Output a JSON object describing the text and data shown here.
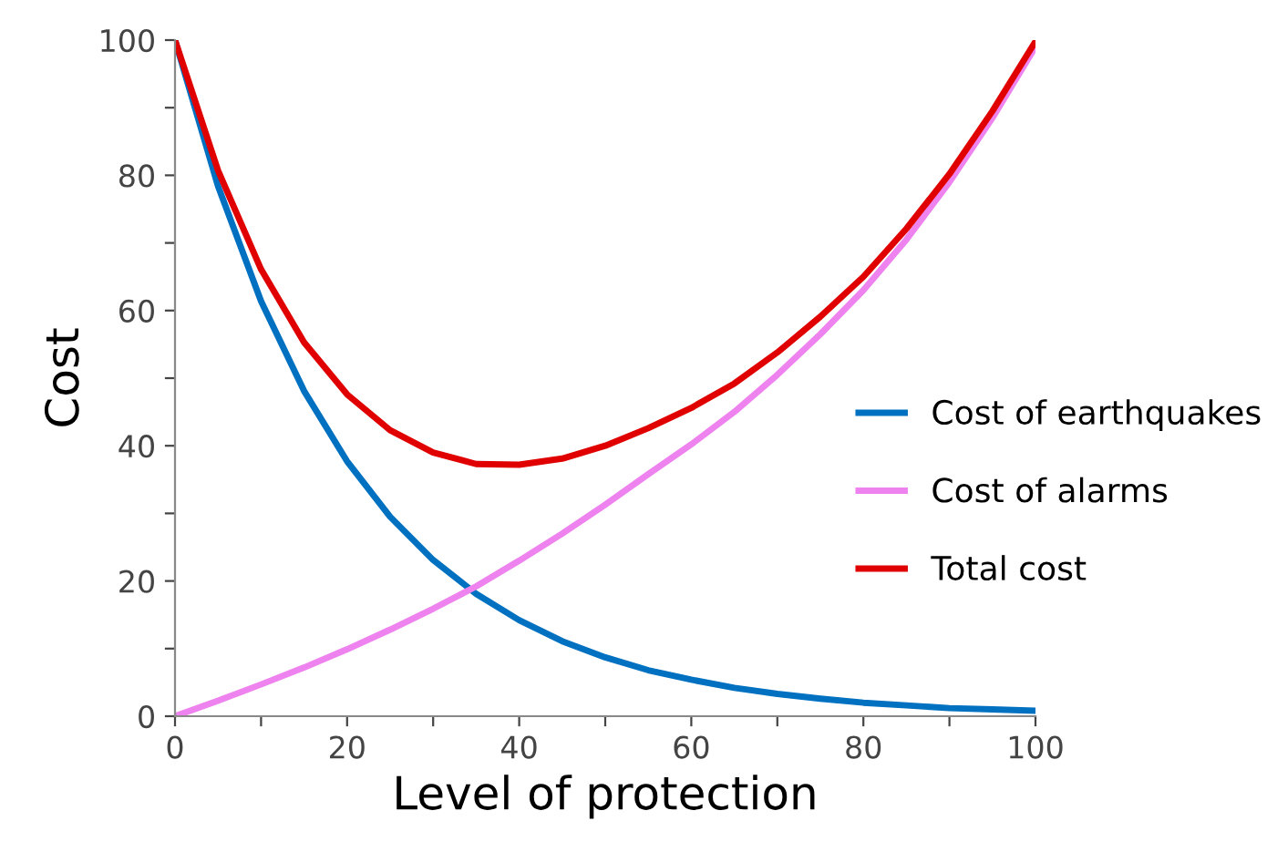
{
  "chart_data": {
    "type": "line",
    "xlabel": "Level of protection",
    "ylabel": "Cost",
    "x": [
      0,
      5,
      10,
      15,
      20,
      25,
      30,
      35,
      40,
      45,
      50,
      55,
      60,
      65,
      70,
      75,
      80,
      85,
      90,
      95,
      100
    ],
    "series": [
      {
        "name": "Cost of earthquakes",
        "color": "#0070c0",
        "values": [
          100,
          78.4,
          61.4,
          48.1,
          37.7,
          29.5,
          23.1,
          18.1,
          14.2,
          11.1,
          8.7,
          6.8,
          5.4,
          4.2,
          3.3,
          2.6,
          2.0,
          1.6,
          1.2,
          1.0,
          0.8
        ]
      },
      {
        "name": "Cost of alarms",
        "color": "#ee82ee",
        "values": [
          0,
          2.3,
          4.7,
          7.2,
          9.9,
          12.8,
          15.9,
          19.2,
          23,
          27,
          31.3,
          35.8,
          40.2,
          45,
          50.5,
          56.5,
          63,
          70.5,
          79,
          88.5,
          99
        ]
      },
      {
        "name": "Total cost",
        "color": "#e00000",
        "values": [
          100,
          80.7,
          66.1,
          55.3,
          47.6,
          42.3,
          39,
          37.3,
          37.2,
          38.1,
          40,
          42.6,
          45.6,
          49.2,
          53.8,
          59.1,
          65,
          72.1,
          80.2,
          89.5,
          99.8
        ]
      }
    ],
    "xlim": [
      0,
      100
    ],
    "ylim": [
      0,
      100
    ],
    "xticks": [
      0,
      {
        "value": 10,
        "label": null
      },
      20,
      {
        "value": 30,
        "label": null
      },
      40,
      {
        "value": 50,
        "label": null
      },
      60,
      {
        "value": 70,
        "label": null
      },
      80,
      {
        "value": 90,
        "label": null
      },
      100
    ],
    "yticks": [
      0,
      {
        "value": 10,
        "label": null
      },
      20,
      {
        "value": 30,
        "label": null
      },
      40,
      {
        "value": 50,
        "label": null
      },
      60,
      {
        "value": 70,
        "label": null
      },
      80,
      {
        "value": 90,
        "label": null
      },
      100
    ],
    "grid": false,
    "legend": "right",
    "marker": "none",
    "line_style": "solid"
  }
}
